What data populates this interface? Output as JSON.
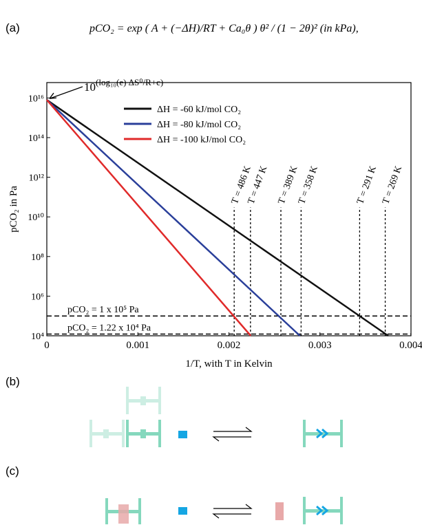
{
  "panels": [
    "(a)",
    "(b)",
    "(c)"
  ],
  "equation": "pCO₂ = exp ( A + (−ΔH)/RT + Ca₀θ ) θ² / (1 − 2θ)²     (in kPa),",
  "chart_data": {
    "type": "line",
    "xlabel": "1/T, with T in Kelvin",
    "ylabel": "pCO₂ in Pa",
    "log_y": true,
    "xlim": [
      0,
      0.004
    ],
    "xticks": [
      0,
      0.001,
      0.002,
      0.003,
      0.004
    ],
    "ylim": [
      10000,
      60000000000000000
    ],
    "yticks": [
      {
        "value": 10000,
        "label": "10⁴"
      },
      {
        "value": 1000000,
        "label": "10⁶"
      },
      {
        "value": 100000000,
        "label": "10⁸"
      },
      {
        "value": 10000000000,
        "label": "10¹⁰"
      },
      {
        "value": 1000000000000,
        "label": "10¹²"
      },
      {
        "value": 100000000000000,
        "label": "10¹⁴"
      },
      {
        "value": 10000000000000000,
        "label": "10¹⁶"
      }
    ],
    "legend": "top-left",
    "series": [
      {
        "name": "ΔH = -60 kJ/mol CO₂",
        "color": "#111111",
        "x": [
          0,
          0.00375
        ],
        "values": [
          8000000000000000,
          10000
        ]
      },
      {
        "name": "ΔH = -80 kJ/mol CO₂",
        "color": "#2a3f9a",
        "x": [
          0,
          0.00278
        ],
        "values": [
          8000000000000000,
          10000
        ]
      },
      {
        "name": "ΔH = -100 kJ/mol CO₂",
        "color": "#e02a2a",
        "x": [
          0,
          0.00224
        ],
        "values": [
          8000000000000000,
          10000
        ]
      }
    ],
    "start_annotation": {
      "base": "10",
      "exponent": "(log₁₀(e) ΔS⁰/R+c)"
    },
    "vlines": [
      {
        "x": 0.002058,
        "label": "T = 486 K"
      },
      {
        "x": 0.002237,
        "label": "T = 447 K"
      },
      {
        "x": 0.002571,
        "label": "T = 389 K"
      },
      {
        "x": 0.002793,
        "label": "T = 358 K"
      },
      {
        "x": 0.003436,
        "label": "T = 291 K"
      },
      {
        "x": 0.003717,
        "label": "T = 269 K"
      }
    ],
    "hlines": [
      {
        "y": 100000,
        "label": "pCO₂ = 1 x 10⁵ Pa"
      },
      {
        "y": 12200,
        "label": "pCO₂ = 1.22 x 10⁴ Pa"
      }
    ]
  }
}
